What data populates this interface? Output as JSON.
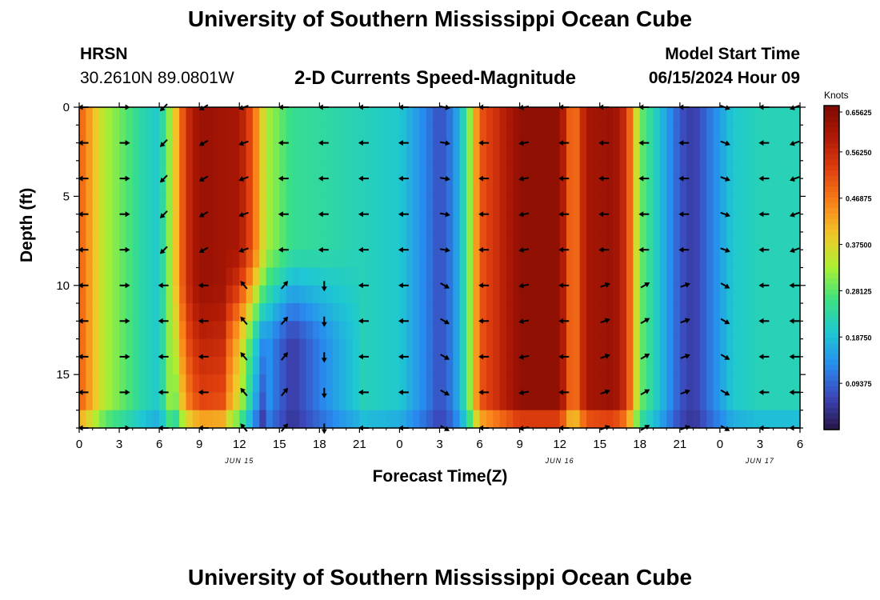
{
  "header": {
    "title": "University of Southern Mississippi Ocean Cube",
    "station": "HRSN",
    "coordinates": "30.2610N  89.0801W",
    "subtitle": "2-D Currents Speed-Magnitude",
    "model_start_label": "Model Start Time",
    "model_start_value": "06/15/2024 Hour 09"
  },
  "footer": {
    "title": "University of Southern Mississippi Ocean Cube"
  },
  "colors": {
    "low": "#2b1f6a",
    "mid": "#33d3b0",
    "high": "#7e0a04",
    "arrow": "#000000"
  },
  "chart_data": {
    "type": "heatmap",
    "title": "2-D Currents Speed-Magnitude",
    "xlabel": "Forecast Time(Z)",
    "ylabel": "Depth (ft)",
    "units": "Knots",
    "xlim": [
      0,
      54
    ],
    "ylim": [
      0,
      18
    ],
    "y_reversed": true,
    "x_ticks": [
      0,
      3,
      6,
      9,
      12,
      15,
      18,
      21,
      24,
      27,
      30,
      33,
      36,
      39,
      42,
      45,
      48,
      51,
      54
    ],
    "x_tick_labels": [
      "0",
      "3",
      "6",
      "9",
      "12",
      "15",
      "18",
      "21",
      "0",
      "3",
      "6",
      "9",
      "12",
      "15",
      "18",
      "21",
      "0",
      "3",
      "6"
    ],
    "date_labels": [
      {
        "hour": 12,
        "text": "JUN 15"
      },
      {
        "hour": 36,
        "text": "JUN 16"
      },
      {
        "hour": 51,
        "text": "JUN 17"
      }
    ],
    "y_ticks": [
      0,
      5,
      10,
      15
    ],
    "colorbar": {
      "min": 0.0,
      "max": 0.65625,
      "ticks": [
        "0.65625",
        "0.56250",
        "0.46875",
        "0.37500",
        "0.28125",
        "0.18750",
        "0.09375"
      ],
      "tick_values": [
        0.65625,
        0.5625,
        0.46875,
        0.375,
        0.28125,
        0.1875,
        0.09375
      ]
    },
    "surface_speed_profile": {
      "hours": [
        0,
        2,
        4,
        5,
        6,
        7,
        8,
        9,
        12,
        13,
        14,
        16,
        18,
        21,
        24,
        26,
        27,
        28,
        29,
        30,
        33,
        36,
        37,
        38,
        40,
        41,
        42,
        45,
        46,
        47,
        48,
        49,
        51,
        54
      ],
      "speed_knots": [
        0.5,
        0.33,
        0.26,
        0.22,
        0.2,
        0.35,
        0.55,
        0.62,
        0.6,
        0.5,
        0.33,
        0.25,
        0.24,
        0.22,
        0.2,
        0.12,
        0.07,
        0.12,
        0.25,
        0.5,
        0.63,
        0.63,
        0.45,
        0.6,
        0.62,
        0.55,
        0.3,
        0.08,
        0.05,
        0.1,
        0.15,
        0.2,
        0.22,
        0.22
      ]
    },
    "deep_low_speed_region": {
      "hours": [
        13,
        19
      ],
      "depth_ft": [
        12,
        18
      ],
      "speed_knots": 0.05
    },
    "vector_depths_ft": [
      0,
      2,
      4,
      6,
      8,
      10,
      12,
      14,
      16,
      18
    ],
    "vector_hours": [
      0,
      3,
      6,
      9,
      12,
      15,
      18,
      21,
      24,
      27,
      30,
      33,
      36,
      39,
      42,
      45,
      48,
      51,
      54
    ],
    "vector_direction_deg_surface": [
      180,
      0,
      225,
      210,
      200,
      180,
      180,
      180,
      180,
      350,
      180,
      190,
      180,
      180,
      180,
      180,
      340,
      180,
      200
    ],
    "vector_direction_deg_deep": [
      180,
      0,
      180,
      180,
      130,
      50,
      270,
      180,
      180,
      330,
      180,
      190,
      180,
      20,
      30,
      20,
      330,
      180,
      180
    ],
    "notes": "Arrow direction: 0 = east (right), 90 = up on plot; depths 0-18 ft."
  }
}
